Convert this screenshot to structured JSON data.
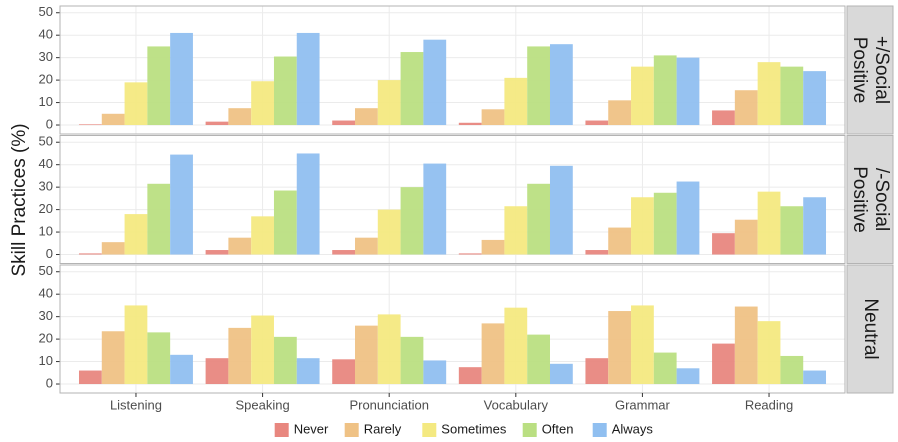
{
  "chart_data": {
    "type": "bar",
    "y_label": "Skill Practices (%)",
    "categories": [
      "Listening",
      "Speaking",
      "Pronunciation",
      "Vocabulary",
      "Grammar",
      "Reading"
    ],
    "series": [
      {
        "name": "Never",
        "color": "#e8877f"
      },
      {
        "name": "Rarely",
        "color": "#efc285"
      },
      {
        "name": "Sometimes",
        "color": "#f4e981"
      },
      {
        "name": "Often",
        "color": "#badf82"
      },
      {
        "name": "Always",
        "color": "#90bff0"
      }
    ],
    "ylim": [
      -4,
      53
    ],
    "yticks": [
      0,
      10,
      20,
      30,
      40,
      50
    ],
    "grid": true,
    "legend": "bottom",
    "panels": [
      {
        "strip": [
          "Positive",
          "+/Social"
        ],
        "series": [
          {
            "values": [
              0.3,
              1.5,
              2,
              1,
              2,
              6.5
            ]
          },
          {
            "values": [
              5,
              7.5,
              7.5,
              7,
              11,
              15.5
            ]
          },
          {
            "values": [
              19,
              19.5,
              20,
              21,
              26,
              28
            ]
          },
          {
            "values": [
              35,
              30.5,
              32.5,
              35,
              31,
              26
            ]
          },
          {
            "values": [
              41,
              41,
              38,
              36,
              30,
              24
            ]
          }
        ]
      },
      {
        "strip": [
          "Positive",
          "/-Social"
        ],
        "series": [
          {
            "values": [
              0.5,
              2,
              2,
              0.5,
              2,
              9.5
            ]
          },
          {
            "values": [
              5.5,
              7.5,
              7.5,
              6.5,
              12,
              15.5
            ]
          },
          {
            "values": [
              18,
              17,
              20,
              21.5,
              25.5,
              28
            ]
          },
          {
            "values": [
              31.5,
              28.5,
              30,
              31.5,
              27.5,
              21.5
            ]
          },
          {
            "values": [
              44.5,
              45,
              40.5,
              39.5,
              32.5,
              25.5
            ]
          }
        ]
      },
      {
        "strip": [
          "Neutral"
        ],
        "series": [
          {
            "values": [
              6,
              11.5,
              11,
              7.5,
              11.5,
              18
            ]
          },
          {
            "values": [
              23.5,
              25,
              26,
              27,
              32.5,
              34.5
            ]
          },
          {
            "values": [
              35,
              30.5,
              31,
              34,
              35,
              28
            ]
          },
          {
            "values": [
              23,
              21,
              21,
              22,
              14,
              12.5
            ]
          },
          {
            "values": [
              13,
              11.5,
              10.5,
              9,
              7,
              6
            ]
          }
        ]
      }
    ]
  }
}
